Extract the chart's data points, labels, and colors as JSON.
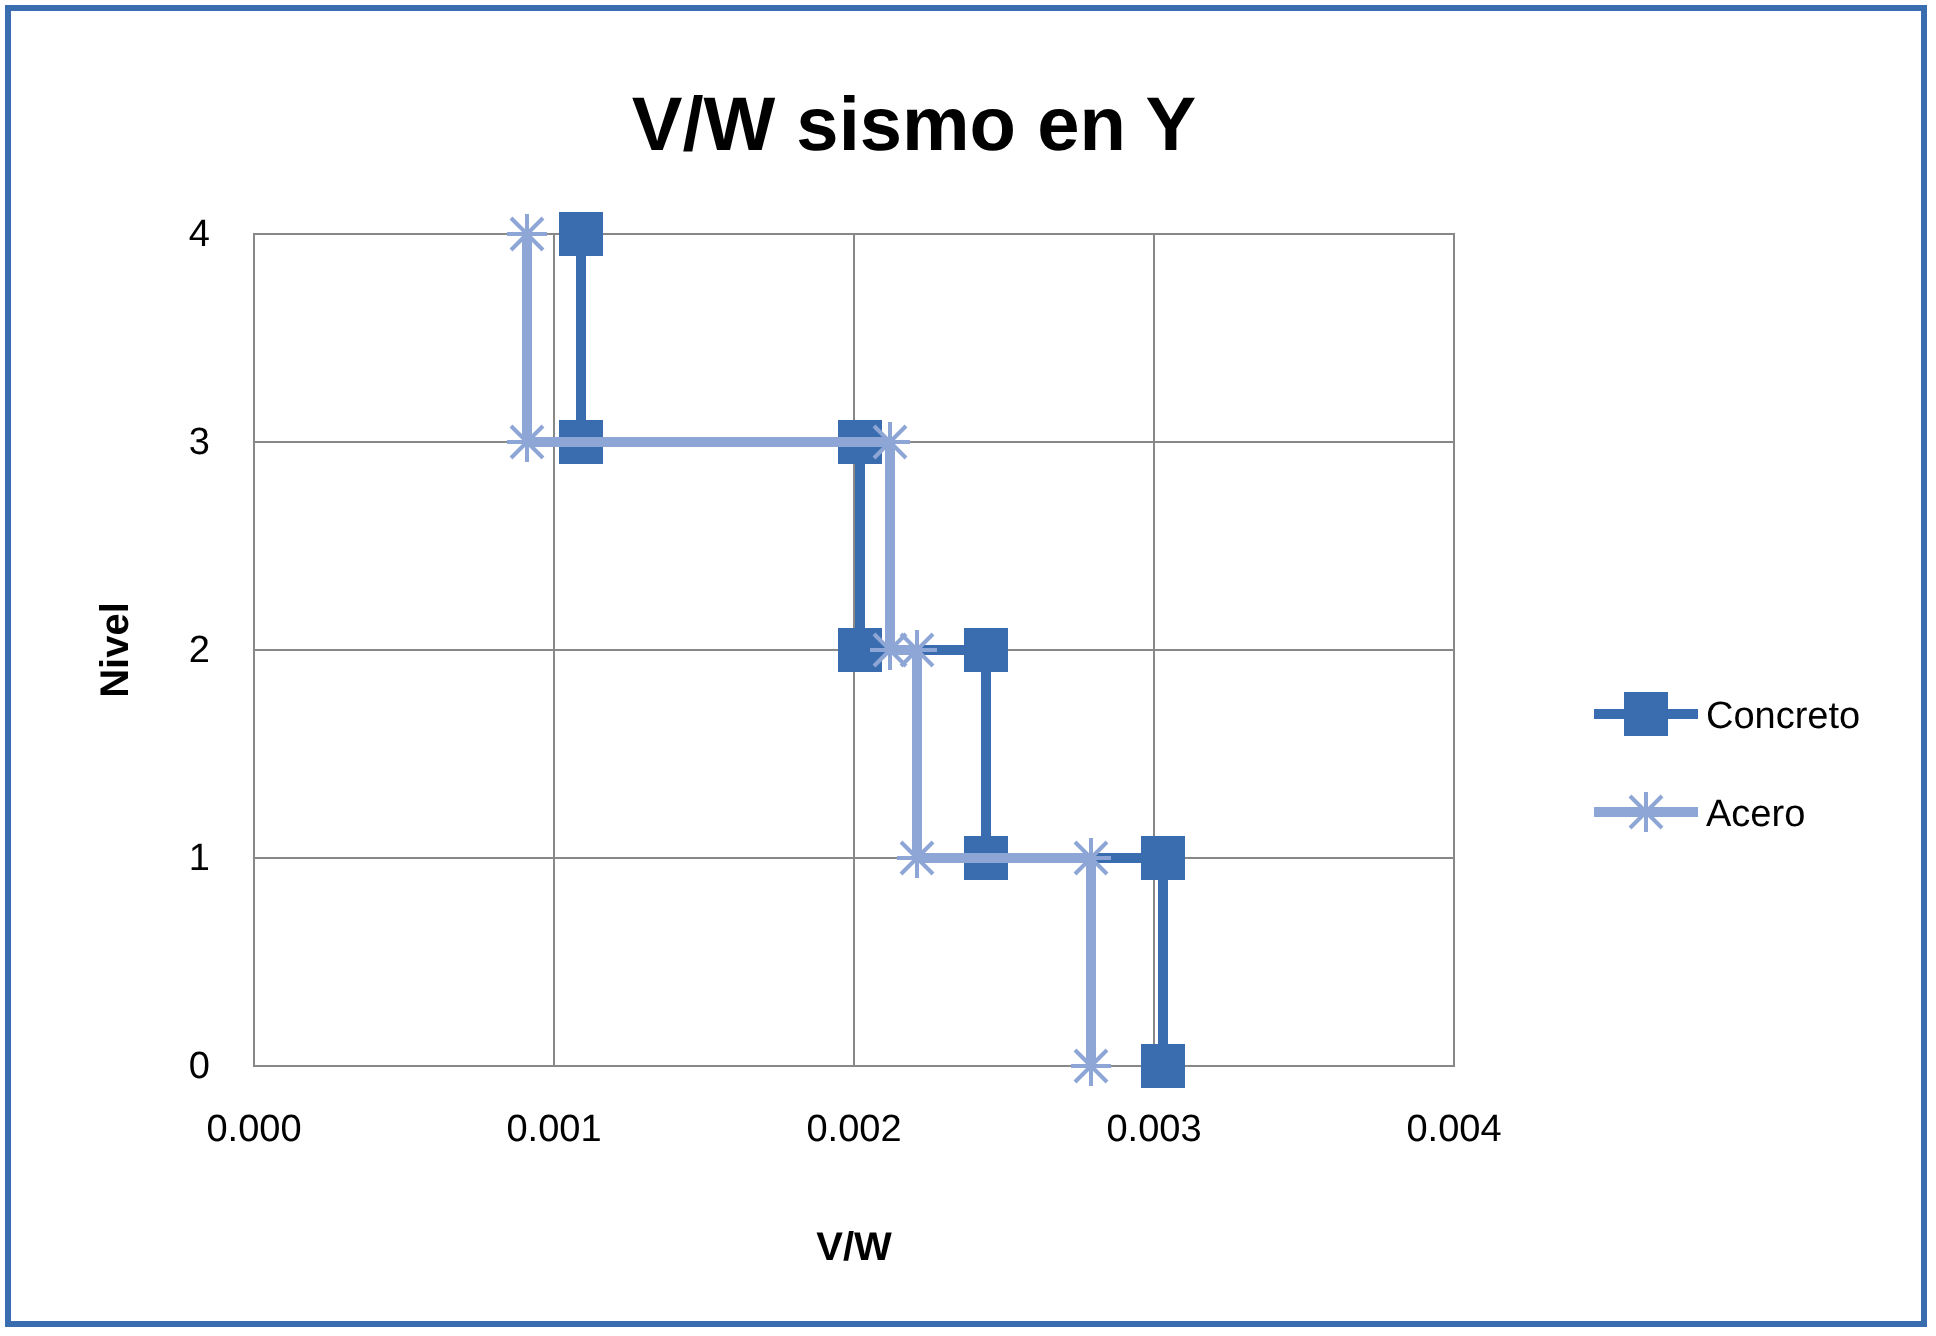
{
  "chart_data": {
    "type": "line",
    "title": "V/W sismo en Y",
    "xlabel": "V/W",
    "ylabel": "Nivel",
    "xlim": [
      0,
      0.004
    ],
    "xticks": [
      {
        "value": 0,
        "label": "0.000"
      },
      {
        "value": 0.001,
        "label": "0.001"
      },
      {
        "value": 0.002,
        "label": "0.002"
      },
      {
        "value": 0.003,
        "label": "0.003"
      },
      {
        "value": 0.004,
        "label": "0.004"
      }
    ],
    "ylim": [
      0,
      4
    ],
    "yticks": [
      0,
      1,
      2,
      3,
      4
    ],
    "grid": true,
    "legend": "right",
    "series": [
      {
        "name": "Concreto",
        "color": "#3a6db0",
        "marker": "square",
        "x": [
          0.00303,
          0.00303,
          0.00244,
          0.00244,
          0.00202,
          0.00202,
          0.00109,
          0.00109
        ],
        "values": [
          0,
          1,
          1,
          2,
          2,
          3,
          3,
          4
        ]
      },
      {
        "name": "Acero",
        "color": "#8ea6d6",
        "marker": "cross",
        "x": [
          0.00279,
          0.00279,
          0.00221,
          0.00221,
          0.00212,
          0.00212,
          0.00091,
          0.00091
        ],
        "values": [
          0,
          1,
          1,
          2,
          2,
          3,
          3,
          4
        ]
      }
    ]
  }
}
